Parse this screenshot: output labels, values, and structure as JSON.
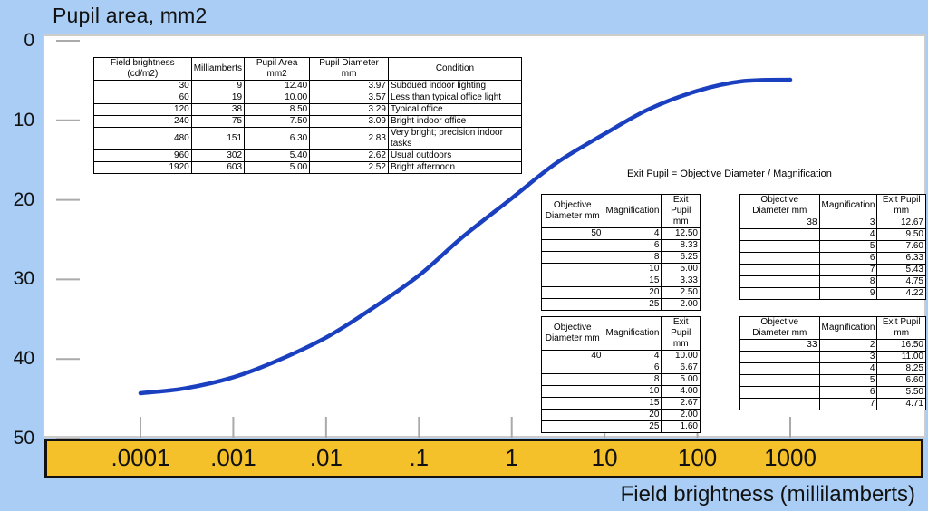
{
  "chart_data": {
    "type": "line",
    "title": "Pupil area, mm2",
    "xlabel": "Field brightness (millilamberts)",
    "ylabel": "",
    "x_scale": "log",
    "x_ticks": [
      0.0001,
      0.001,
      0.01,
      0.1,
      1,
      10,
      100,
      1000
    ],
    "x_tick_labels": [
      ".0001",
      ".001",
      ".01",
      ".1",
      "1",
      "10",
      "100",
      "1000"
    ],
    "y_ticks": [
      0,
      10,
      20,
      30,
      40,
      50
    ],
    "y_tick_labels": [
      "0",
      "10",
      "20",
      "30",
      "40",
      "50"
    ],
    "ylim": [
      0,
      50
    ],
    "y_inverted": true,
    "line_color": "#1a3fbf",
    "series": [
      {
        "x": [
          0.0001,
          0.0003,
          0.001,
          0.003,
          0.01,
          0.03,
          0.1,
          0.3,
          1,
          3,
          10,
          30,
          100,
          300,
          1000
        ],
        "values": [
          44.3,
          43.7,
          42.3,
          40.2,
          37.3,
          33.8,
          29.5,
          24.6,
          19.8,
          15.4,
          11.7,
          8.6,
          6.3,
          5.1,
          4.9
        ]
      }
    ]
  },
  "brightness_table": {
    "headers": [
      "Field brightness (cd/m2)",
      "Milliamberts",
      "Pupil Area mm2",
      "Pupil Diameter mm",
      "Condition"
    ],
    "rows": [
      [
        "30",
        "9",
        "12.40",
        "3.97",
        "Subdued indoor lighting"
      ],
      [
        "60",
        "19",
        "10.00",
        "3.57",
        "Less than typical office light"
      ],
      [
        "120",
        "38",
        "8.50",
        "3.29",
        "Typical office"
      ],
      [
        "240",
        "75",
        "7.50",
        "3.09",
        "Bright indoor office"
      ],
      [
        "480",
        "151",
        "6.30",
        "2.83",
        "Very bright; precision indoor tasks"
      ],
      [
        "960",
        "302",
        "5.40",
        "2.62",
        "Usual outdoors"
      ],
      [
        "1920",
        "603",
        "5.00",
        "2.52",
        "Bright afternoon"
      ]
    ]
  },
  "exit_formula": "Exit Pupil = Objective Diameter / Magnification",
  "exit_tables": [
    {
      "headers": [
        "Objective Diameter mm",
        "Magnification",
        "Exit Pupil mm"
      ],
      "rows": [
        [
          "50",
          "4",
          "12.50"
        ],
        [
          "",
          "6",
          "8.33"
        ],
        [
          "",
          "8",
          "6.25"
        ],
        [
          "",
          "10",
          "5.00"
        ],
        [
          "",
          "15",
          "3.33"
        ],
        [
          "",
          "20",
          "2.50"
        ],
        [
          "",
          "25",
          "2.00"
        ]
      ]
    },
    {
      "headers": [
        "Objective Diameter mm",
        "Magnification",
        "Exit Pupil mm"
      ],
      "rows": [
        [
          "38",
          "3",
          "12.67"
        ],
        [
          "",
          "4",
          "9.50"
        ],
        [
          "",
          "5",
          "7.60"
        ],
        [
          "",
          "6",
          "6.33"
        ],
        [
          "",
          "7",
          "5.43"
        ],
        [
          "",
          "8",
          "4.75"
        ],
        [
          "",
          "9",
          "4.22"
        ]
      ]
    },
    {
      "headers": [
        "Objective Diameter mm",
        "Magnification",
        "Exit Pupil mm"
      ],
      "rows": [
        [
          "40",
          "4",
          "10.00"
        ],
        [
          "",
          "6",
          "6.67"
        ],
        [
          "",
          "8",
          "5.00"
        ],
        [
          "",
          "10",
          "4.00"
        ],
        [
          "",
          "15",
          "2.67"
        ],
        [
          "",
          "20",
          "2.00"
        ],
        [
          "",
          "25",
          "1.60"
        ]
      ]
    },
    {
      "headers": [
        "Objective Diameter mm",
        "Magnification",
        "Exit Pupil mm"
      ],
      "rows": [
        [
          "33",
          "2",
          "16.50"
        ],
        [
          "",
          "3",
          "11.00"
        ],
        [
          "",
          "4",
          "8.25"
        ],
        [
          "",
          "5",
          "6.60"
        ],
        [
          "",
          "6",
          "5.50"
        ],
        [
          "",
          "7",
          "4.71"
        ]
      ]
    }
  ]
}
